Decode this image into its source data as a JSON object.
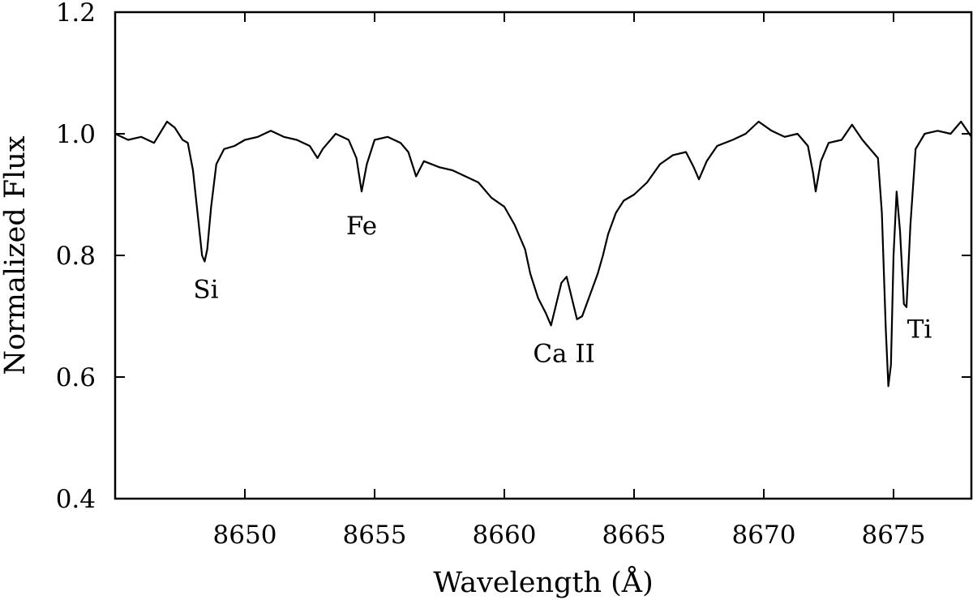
{
  "chart_data": {
    "type": "line",
    "title": "",
    "xlabel": "Wavelength (Å)",
    "ylabel": "Normalized Flux",
    "xlim": [
      8645,
      8678
    ],
    "ylim": [
      0.4,
      1.2
    ],
    "x_ticks": [
      8650,
      8655,
      8660,
      8665,
      8670,
      8675
    ],
    "y_ticks": [
      0.4,
      0.6,
      0.8,
      1.0,
      1.2
    ],
    "x_tick_labels": [
      "8650",
      "8655",
      "8660",
      "8665",
      "8670",
      "8675"
    ],
    "y_tick_labels": [
      "0.4",
      "0.6",
      "0.8",
      "1.0",
      "1.2"
    ],
    "grid": false,
    "line_color": "#000000",
    "series": [
      {
        "points": [
          [
            8645.0,
            1.0
          ],
          [
            8645.5,
            0.99
          ],
          [
            8646.0,
            0.995
          ],
          [
            8646.5,
            0.985
          ],
          [
            8647.0,
            1.02
          ],
          [
            8647.3,
            1.01
          ],
          [
            8647.6,
            0.99
          ],
          [
            8647.8,
            0.985
          ],
          [
            8648.0,
            0.94
          ],
          [
            8648.2,
            0.86
          ],
          [
            8648.35,
            0.8
          ],
          [
            8648.45,
            0.79
          ],
          [
            8648.55,
            0.81
          ],
          [
            8648.7,
            0.88
          ],
          [
            8648.9,
            0.95
          ],
          [
            8649.2,
            0.975
          ],
          [
            8649.6,
            0.98
          ],
          [
            8650.0,
            0.99
          ],
          [
            8650.5,
            0.995
          ],
          [
            8651.0,
            1.005
          ],
          [
            8651.5,
            0.995
          ],
          [
            8652.0,
            0.99
          ],
          [
            8652.5,
            0.98
          ],
          [
            8652.8,
            0.96
          ],
          [
            8653.0,
            0.975
          ],
          [
            8653.5,
            1.0
          ],
          [
            8654.0,
            0.99
          ],
          [
            8654.3,
            0.96
          ],
          [
            8654.5,
            0.905
          ],
          [
            8654.7,
            0.95
          ],
          [
            8655.0,
            0.99
          ],
          [
            8655.5,
            0.995
          ],
          [
            8656.0,
            0.985
          ],
          [
            8656.3,
            0.97
          ],
          [
            8656.6,
            0.93
          ],
          [
            8656.9,
            0.955
          ],
          [
            8657.5,
            0.945
          ],
          [
            8658.0,
            0.94
          ],
          [
            8658.5,
            0.93
          ],
          [
            8659.0,
            0.92
          ],
          [
            8659.5,
            0.895
          ],
          [
            8660.0,
            0.88
          ],
          [
            8660.4,
            0.85
          ],
          [
            8660.8,
            0.81
          ],
          [
            8661.0,
            0.77
          ],
          [
            8661.3,
            0.73
          ],
          [
            8661.6,
            0.705
          ],
          [
            8661.8,
            0.685
          ],
          [
            8662.0,
            0.72
          ],
          [
            8662.2,
            0.755
          ],
          [
            8662.4,
            0.765
          ],
          [
            8662.6,
            0.73
          ],
          [
            8662.8,
            0.695
          ],
          [
            8663.0,
            0.7
          ],
          [
            8663.3,
            0.735
          ],
          [
            8663.6,
            0.77
          ],
          [
            8663.8,
            0.8
          ],
          [
            8664.0,
            0.835
          ],
          [
            8664.3,
            0.87
          ],
          [
            8664.6,
            0.89
          ],
          [
            8665.0,
            0.9
          ],
          [
            8665.5,
            0.92
          ],
          [
            8666.0,
            0.95
          ],
          [
            8666.5,
            0.965
          ],
          [
            8667.0,
            0.97
          ],
          [
            8667.3,
            0.945
          ],
          [
            8667.5,
            0.925
          ],
          [
            8667.8,
            0.955
          ],
          [
            8668.2,
            0.98
          ],
          [
            8668.8,
            0.99
          ],
          [
            8669.3,
            1.0
          ],
          [
            8669.8,
            1.02
          ],
          [
            8670.3,
            1.005
          ],
          [
            8670.8,
            0.995
          ],
          [
            8671.3,
            1.0
          ],
          [
            8671.7,
            0.98
          ],
          [
            8671.9,
            0.935
          ],
          [
            8672.0,
            0.905
          ],
          [
            8672.2,
            0.955
          ],
          [
            8672.5,
            0.985
          ],
          [
            8673.0,
            0.99
          ],
          [
            8673.4,
            1.015
          ],
          [
            8673.8,
            0.99
          ],
          [
            8674.2,
            0.97
          ],
          [
            8674.4,
            0.96
          ],
          [
            8674.55,
            0.87
          ],
          [
            8674.7,
            0.68
          ],
          [
            8674.8,
            0.585
          ],
          [
            8674.9,
            0.62
          ],
          [
            8675.0,
            0.8
          ],
          [
            8675.12,
            0.905
          ],
          [
            8675.25,
            0.84
          ],
          [
            8675.4,
            0.72
          ],
          [
            8675.5,
            0.715
          ],
          [
            8675.65,
            0.85
          ],
          [
            8675.85,
            0.975
          ],
          [
            8676.2,
            1.0
          ],
          [
            8676.7,
            1.005
          ],
          [
            8677.2,
            1.0
          ],
          [
            8677.6,
            1.02
          ],
          [
            8678.0,
            0.995
          ]
        ]
      }
    ],
    "annotations": [
      {
        "text": "Si",
        "x": 8648.5,
        "y": 0.73
      },
      {
        "text": "Fe",
        "x": 8654.5,
        "y": 0.835
      },
      {
        "text": "Ca II",
        "x": 8662.3,
        "y": 0.625
      },
      {
        "text": "Ti",
        "x": 8676.0,
        "y": 0.665
      }
    ]
  }
}
